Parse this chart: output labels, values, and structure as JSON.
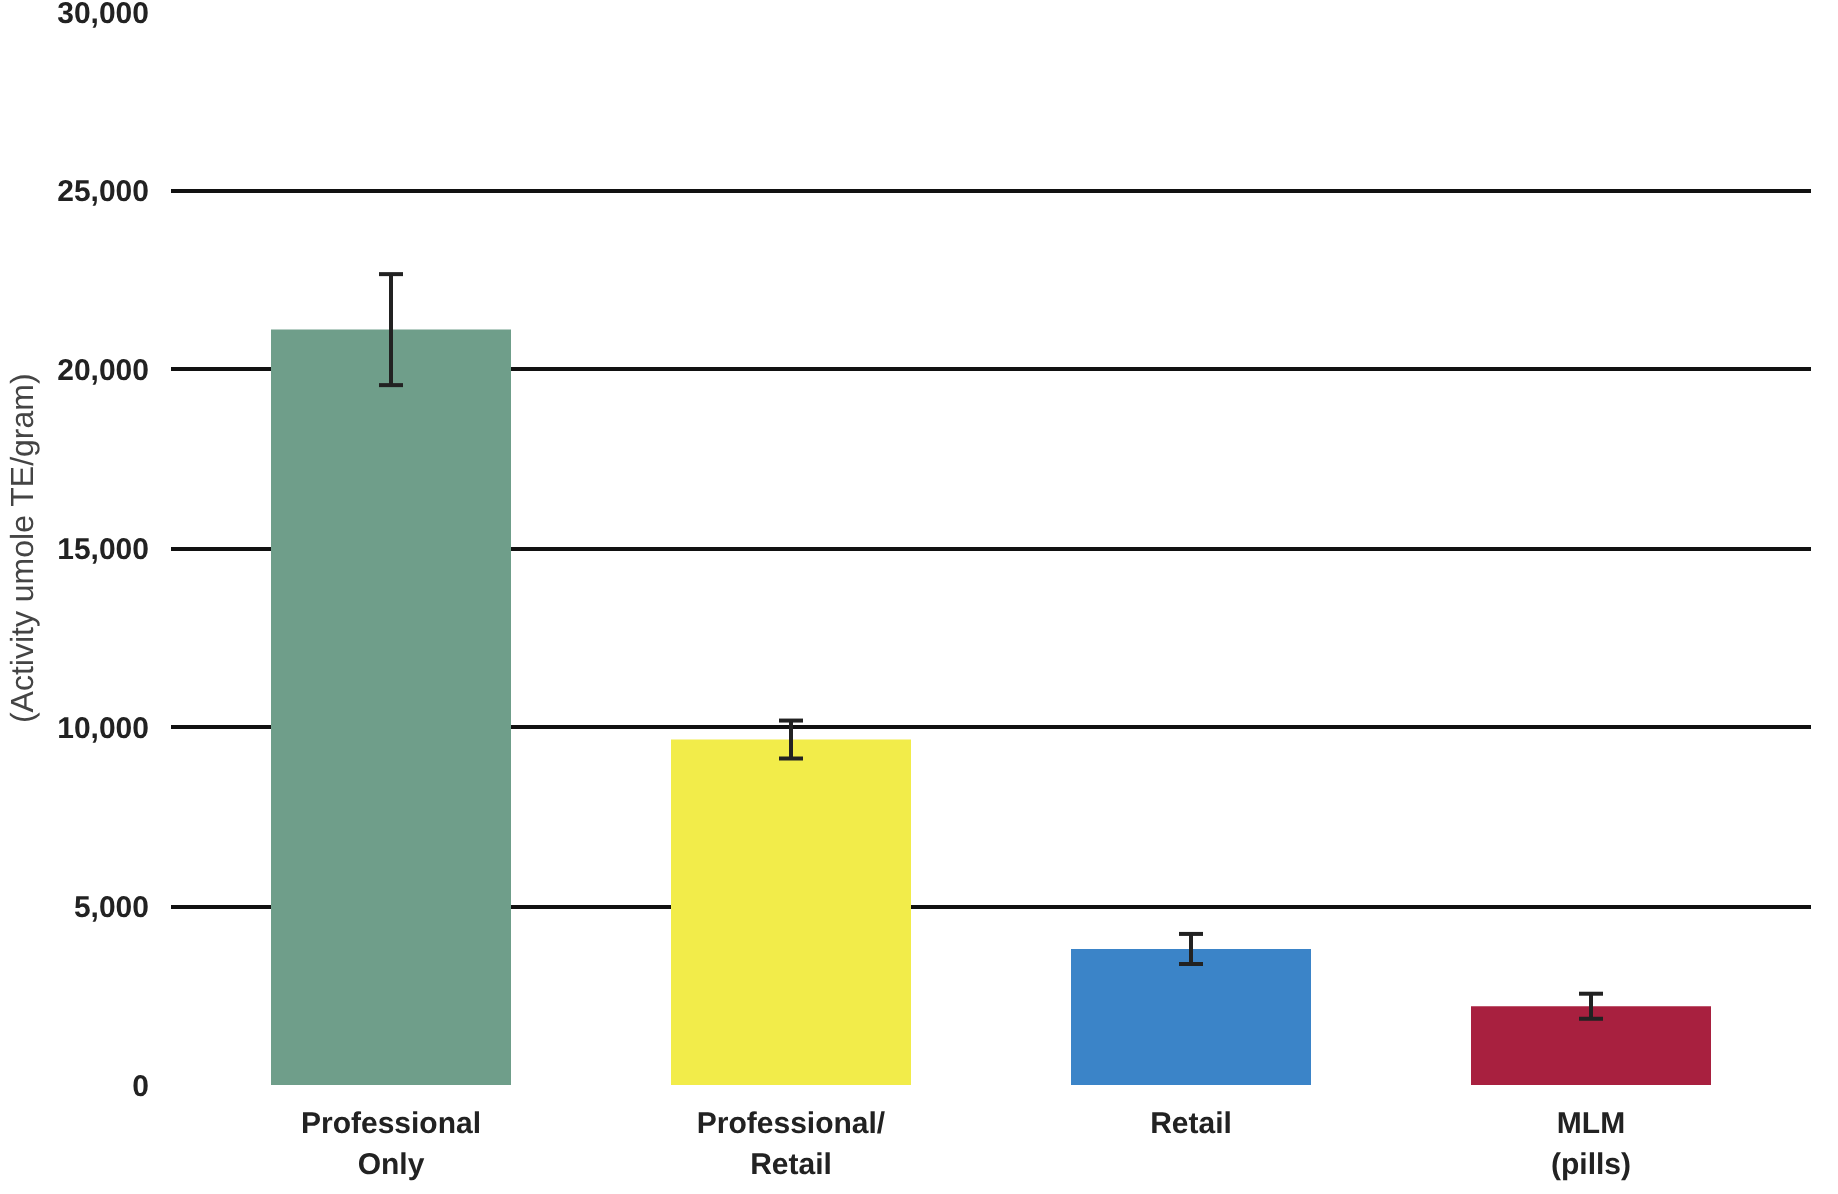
{
  "chart_data": {
    "type": "bar",
    "ylabel": "(Activity umole TE/gram)",
    "categories": [
      "Professional\nOnly",
      "Professional/\nRetail",
      "Retail",
      "MLM\n(pills)"
    ],
    "values": [
      21100,
      9650,
      3800,
      2200
    ],
    "colors": [
      "#6f9e8a",
      "#f2ec4a",
      "#3b84c8",
      "#a8203f"
    ],
    "errors": [
      1550,
      530,
      420,
      350
    ],
    "ylim": [
      0,
      30000
    ],
    "yticks": [
      {
        "value": 0,
        "label": "0"
      },
      {
        "value": 5000,
        "label": "5,000"
      },
      {
        "value": 10000,
        "label": "10,000"
      },
      {
        "value": 15000,
        "label": "15,000"
      },
      {
        "value": 20000,
        "label": "20,000"
      },
      {
        "value": 25000,
        "label": "25,000"
      },
      {
        "value": 30000,
        "label": "30,000"
      }
    ],
    "grid": "y"
  }
}
